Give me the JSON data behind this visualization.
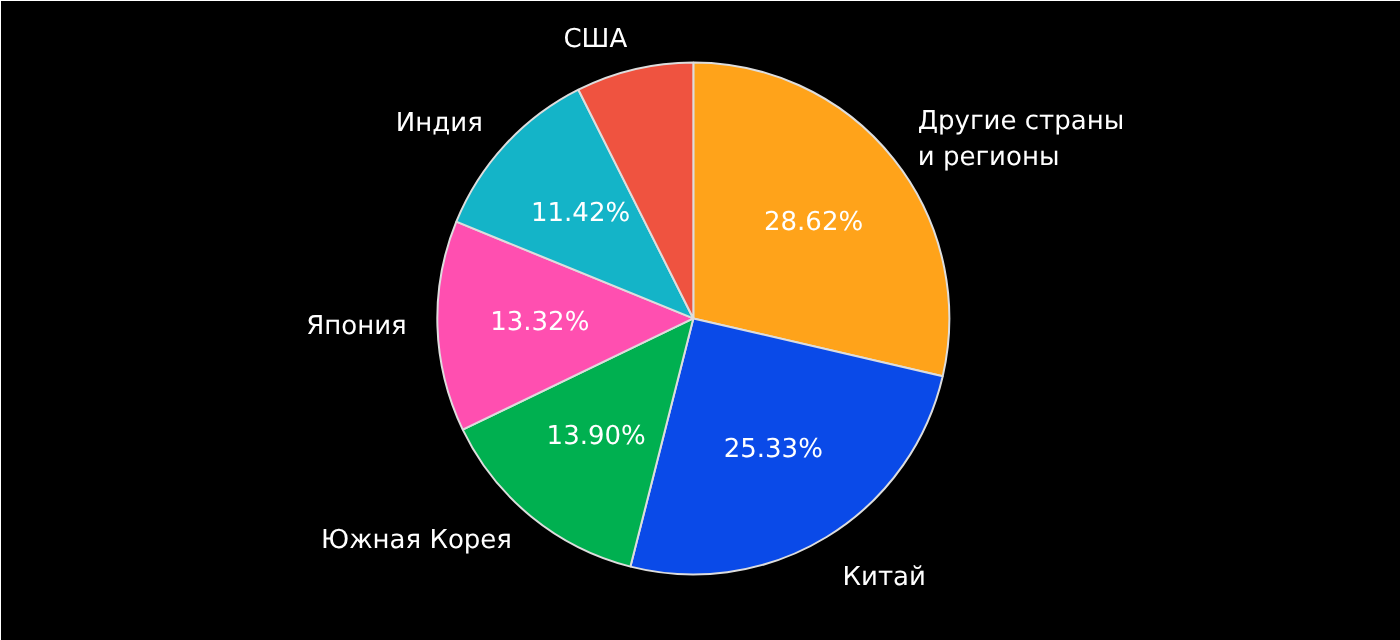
{
  "chart_data": {
    "type": "pie",
    "categories": [
      "Другие страны\nи регионы",
      "Китай",
      "Южная Корея",
      "Япония",
      "Индия",
      "США"
    ],
    "values": [
      28.62,
      25.33,
      13.9,
      13.32,
      11.42,
      7.41
    ],
    "colors": [
      "#ffa31a",
      "#0a4ae8",
      "#00b050",
      "#ff4fb0",
      "#14b4c8",
      "#ef5340"
    ],
    "value_labels": [
      "28.62%",
      "25.33%",
      "13.90%",
      "13.32%",
      "11.42%",
      null
    ]
  }
}
